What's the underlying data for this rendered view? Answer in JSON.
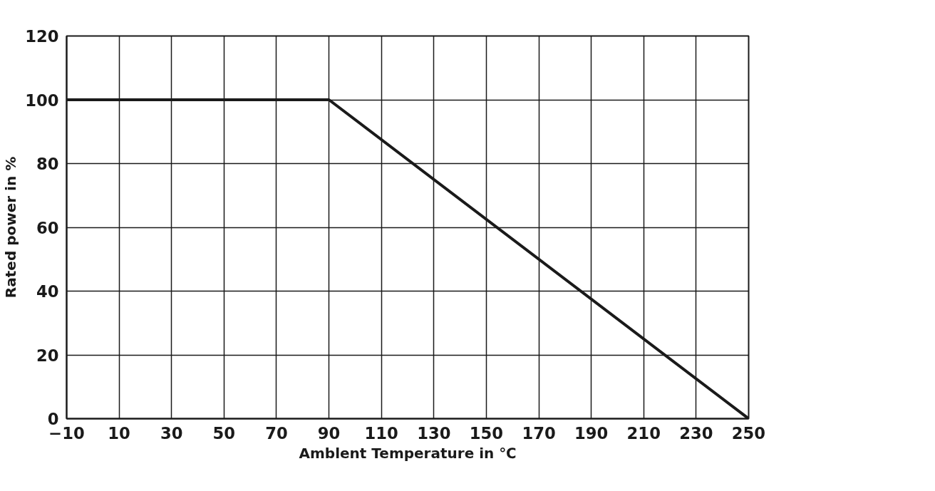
{
  "chart_data": {
    "type": "line",
    "xlabel": "Amblent Temperature in ℃",
    "ylabel": "Rated power in %",
    "x": [
      -10,
      90,
      250
    ],
    "series": [
      {
        "color": "#1a1a1a",
        "values": [
          100,
          100,
          0
        ]
      }
    ],
    "xlim": [
      -10,
      250
    ],
    "xticks": [
      -10,
      10,
      30,
      50,
      70,
      90,
      110,
      130,
      150,
      170,
      190,
      210,
      230,
      250
    ],
    "ylim": [
      0,
      120
    ],
    "yticks": [
      0,
      20,
      40,
      60,
      80,
      100,
      120
    ],
    "grid": true,
    "marker": "none",
    "line_style": "solid"
  }
}
